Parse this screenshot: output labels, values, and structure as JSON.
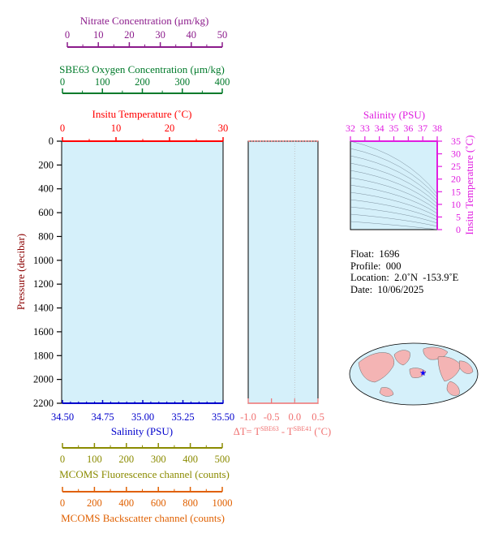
{
  "colors": {
    "nitrate": "#8b1a8b",
    "oxygen": "#007a2a",
    "temperature": "#ff0000",
    "salinity": "#0000cc",
    "pressure": "#8b0000",
    "delta_t": "#f07070",
    "ts_axis": "#e01ee0",
    "fluorescence": "#8b8b00",
    "backscatter": "#e06000",
    "plot_fill": "#d5f0fa",
    "land": "#f4b4b4",
    "ocean": "#d5f0fa"
  },
  "chart_data": [
    {
      "id": "main_profile",
      "type": "line",
      "series": [],
      "axes": {
        "nitrate": {
          "label": "Nitrate Concentration (μm/kg)",
          "range": [
            0,
            50
          ],
          "ticks": [
            "0",
            "10",
            "20",
            "30",
            "40",
            "50"
          ]
        },
        "oxygen": {
          "label": "SBE63 Oxygen Concentration (μm/kg)",
          "range": [
            0,
            400
          ],
          "ticks": [
            "0",
            "100",
            "200",
            "300",
            "400"
          ]
        },
        "temperature": {
          "label": "Insitu Temperature (˚C)",
          "range": [
            0,
            30
          ],
          "ticks": [
            "0",
            "10",
            "20",
            "30"
          ]
        },
        "pressure": {
          "label": "Pressure (decibar)",
          "range": [
            0,
            2200
          ],
          "inverted": true,
          "ticks": [
            "0",
            "200",
            "400",
            "600",
            "800",
            "1000",
            "1200",
            "1400",
            "1600",
            "1800",
            "2000",
            "2200"
          ]
        },
        "salinity": {
          "label": "Salinity (PSU)",
          "range": [
            34.5,
            35.5
          ],
          "ticks": [
            "34.50",
            "34.75",
            "35.00",
            "35.25",
            "35.50"
          ]
        },
        "fluorescence": {
          "label": "MCOMS Fluorescence channel (counts)",
          "range": [
            0,
            500
          ],
          "ticks": [
            "0",
            "100",
            "200",
            "300",
            "400",
            "500"
          ]
        },
        "backscatter": {
          "label": "MCOMS Backscatter channel (counts)",
          "range": [
            0,
            1000
          ],
          "ticks": [
            "0",
            "200",
            "400",
            "600",
            "800",
            "1000"
          ]
        }
      },
      "grid": false
    },
    {
      "id": "delta_t_panel",
      "type": "line",
      "series": [],
      "x": {
        "range": [
          -1.0,
          0.5
        ],
        "ticks": [
          "-1.0",
          "-0.5",
          "0.0",
          "0.5"
        ]
      },
      "xlabel_parts": {
        "prefix": "ΔT= T",
        "sup1": "SBE63",
        "mid": " - T",
        "sup2": "SBE41",
        "suffix": " (˚C)"
      },
      "pressure_range": [
        0,
        2200
      ]
    },
    {
      "id": "ts_diagram",
      "type": "line",
      "series": [],
      "title": "Salinity (PSU)",
      "x": {
        "label": "Salinity (PSU)",
        "range": [
          32,
          38
        ],
        "ticks": [
          "32",
          "33",
          "34",
          "35",
          "36",
          "37",
          "38"
        ]
      },
      "y": {
        "label": "Insitu Temperature (˚C)",
        "range": [
          0,
          35
        ],
        "ticks": [
          "0",
          "5",
          "10",
          "15",
          "20",
          "25",
          "30",
          "35"
        ]
      }
    }
  ],
  "info": {
    "float": "Float:  1696",
    "profile": "Profile:  000",
    "location": "Location:  2.0˚N  -153.9˚E",
    "date": "Date:  10/06/2025"
  },
  "map": {
    "marker": "★",
    "marker_lat": 2.0,
    "marker_lon": -153.9
  }
}
